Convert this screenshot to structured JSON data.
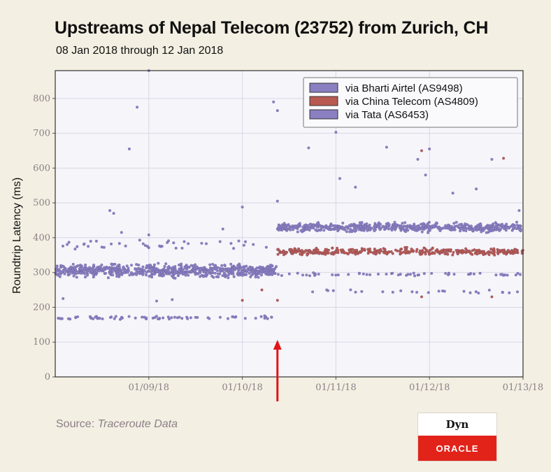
{
  "header": {
    "title": "Upstreams of Nepal Telecom (23752) from Zurich, CH",
    "subtitle": "08 Jan 2018 through 12 Jan 2018"
  },
  "footer": {
    "source_prefix": "Source:",
    "source_name": "Traceroute Data"
  },
  "logo": {
    "top_text": "Dyn",
    "bottom_text": "ORACLE"
  },
  "colors": {
    "background": "#f3efe2",
    "plot_bg": "#f6f5fa",
    "bharti": "#8a7fc1",
    "china_telecom": "#b85a52",
    "tata": "#8a7fc1",
    "annotation_arrow": "#e0141a"
  },
  "chart_data": {
    "type": "scatter",
    "title": "Upstreams of Nepal Telecom (23752) from Zurich, CH",
    "subtitle": "08 Jan 2018 through 12 Jan 2018",
    "xlabel": "",
    "ylabel": "Roundtrip Latency (ms)",
    "x_axis": "date",
    "xlim": [
      "01/08/18",
      "01/13/18"
    ],
    "ylim": [
      0,
      880
    ],
    "x_ticks": [
      "01/09/18",
      "01/10/18",
      "01/11/18",
      "01/12/18",
      "01/13/18"
    ],
    "y_ticks": [
      0,
      100,
      200,
      300,
      400,
      500,
      600,
      700,
      800
    ],
    "grid": true,
    "legend_position": "top-right",
    "annotation": {
      "type": "arrow",
      "x": "01/10/18 09:00",
      "description": "red arrow"
    },
    "series": [
      {
        "name": "via Bharti Airtel (AS9498)",
        "color": "#8a7fc1",
        "clusters": [
          {
            "x_start": "01/08/18 00:00",
            "x_end": "01/10/18 09:00",
            "y_center": 305,
            "y_spread": 25,
            "count": 700
          },
          {
            "x_start": "01/08/18 00:00",
            "x_end": "01/10/18 09:00",
            "y_center": 170,
            "y_spread": 8,
            "count": 70
          },
          {
            "x_start": "01/08/18 00:00",
            "x_end": "01/10/18 09:00",
            "y_center": 380,
            "y_spread": 20,
            "count": 40
          }
        ],
        "outliers": [
          [
            "01/08/18 15:00",
            470
          ],
          [
            "01/08/18 14:00",
            478
          ],
          [
            "01/08/18 17:00",
            415
          ],
          [
            "01/08/18 21:00",
            775
          ],
          [
            "01/08/18 19:00",
            655
          ],
          [
            "01/09/18 00:00",
            408
          ],
          [
            "01/09/18 19:00",
            425
          ],
          [
            "01/09/18 00:00",
            880
          ],
          [
            "01/10/18 00:00",
            488
          ],
          [
            "01/09/18 02:00",
            218
          ],
          [
            "01/09/18 06:00",
            222
          ],
          [
            "01/08/18 02:00",
            225
          ]
        ]
      },
      {
        "name": "via China Telecom (AS4809)",
        "color": "#b85a52",
        "clusters": [
          {
            "x_start": "01/10/18 09:00",
            "x_end": "01/13/18 00:00",
            "y_center": 360,
            "y_spread": 14,
            "count": 380
          }
        ],
        "outliers": [
          [
            "01/10/18 00:00",
            220
          ],
          [
            "01/10/18 05:00",
            250
          ],
          [
            "01/10/18 09:00",
            220
          ],
          [
            "01/11/18 22:00",
            230
          ],
          [
            "01/12/18 16:00",
            230
          ],
          [
            "01/11/18 22:00",
            650
          ],
          [
            "01/12/18 19:00",
            628
          ]
        ]
      },
      {
        "name": "via Tata (AS6453)",
        "color": "#8a7fc1",
        "clusters": [
          {
            "x_start": "01/10/18 09:00",
            "x_end": "01/13/18 00:00",
            "y_center": 430,
            "y_spread": 18,
            "count": 560
          },
          {
            "x_start": "01/10/18 09:00",
            "x_end": "01/13/18 00:00",
            "y_center": 295,
            "y_spread": 6,
            "count": 55
          },
          {
            "x_start": "01/10/18 09:00",
            "x_end": "01/13/18 00:00",
            "y_center": 245,
            "y_spread": 8,
            "count": 25
          }
        ],
        "outliers": [
          [
            "01/10/18 08:00",
            790
          ],
          [
            "01/10/18 09:00",
            765
          ],
          [
            "01/10/18 17:00",
            658
          ],
          [
            "01/11/18 00:00",
            703
          ],
          [
            "01/11/18 01:00",
            570
          ],
          [
            "01/11/18 13:00",
            660
          ],
          [
            "01/11/18 21:00",
            625
          ],
          [
            "01/12/18 00:00",
            655
          ],
          [
            "01/11/18 23:00",
            580
          ],
          [
            "01/12/18 06:00",
            528
          ],
          [
            "01/12/18 16:00",
            625
          ],
          [
            "01/12/18 12:00",
            540
          ],
          [
            "01/12/18 23:00",
            478
          ],
          [
            "01/11/18 05:00",
            545
          ],
          [
            "01/10/18 09:00",
            505
          ]
        ]
      }
    ]
  }
}
